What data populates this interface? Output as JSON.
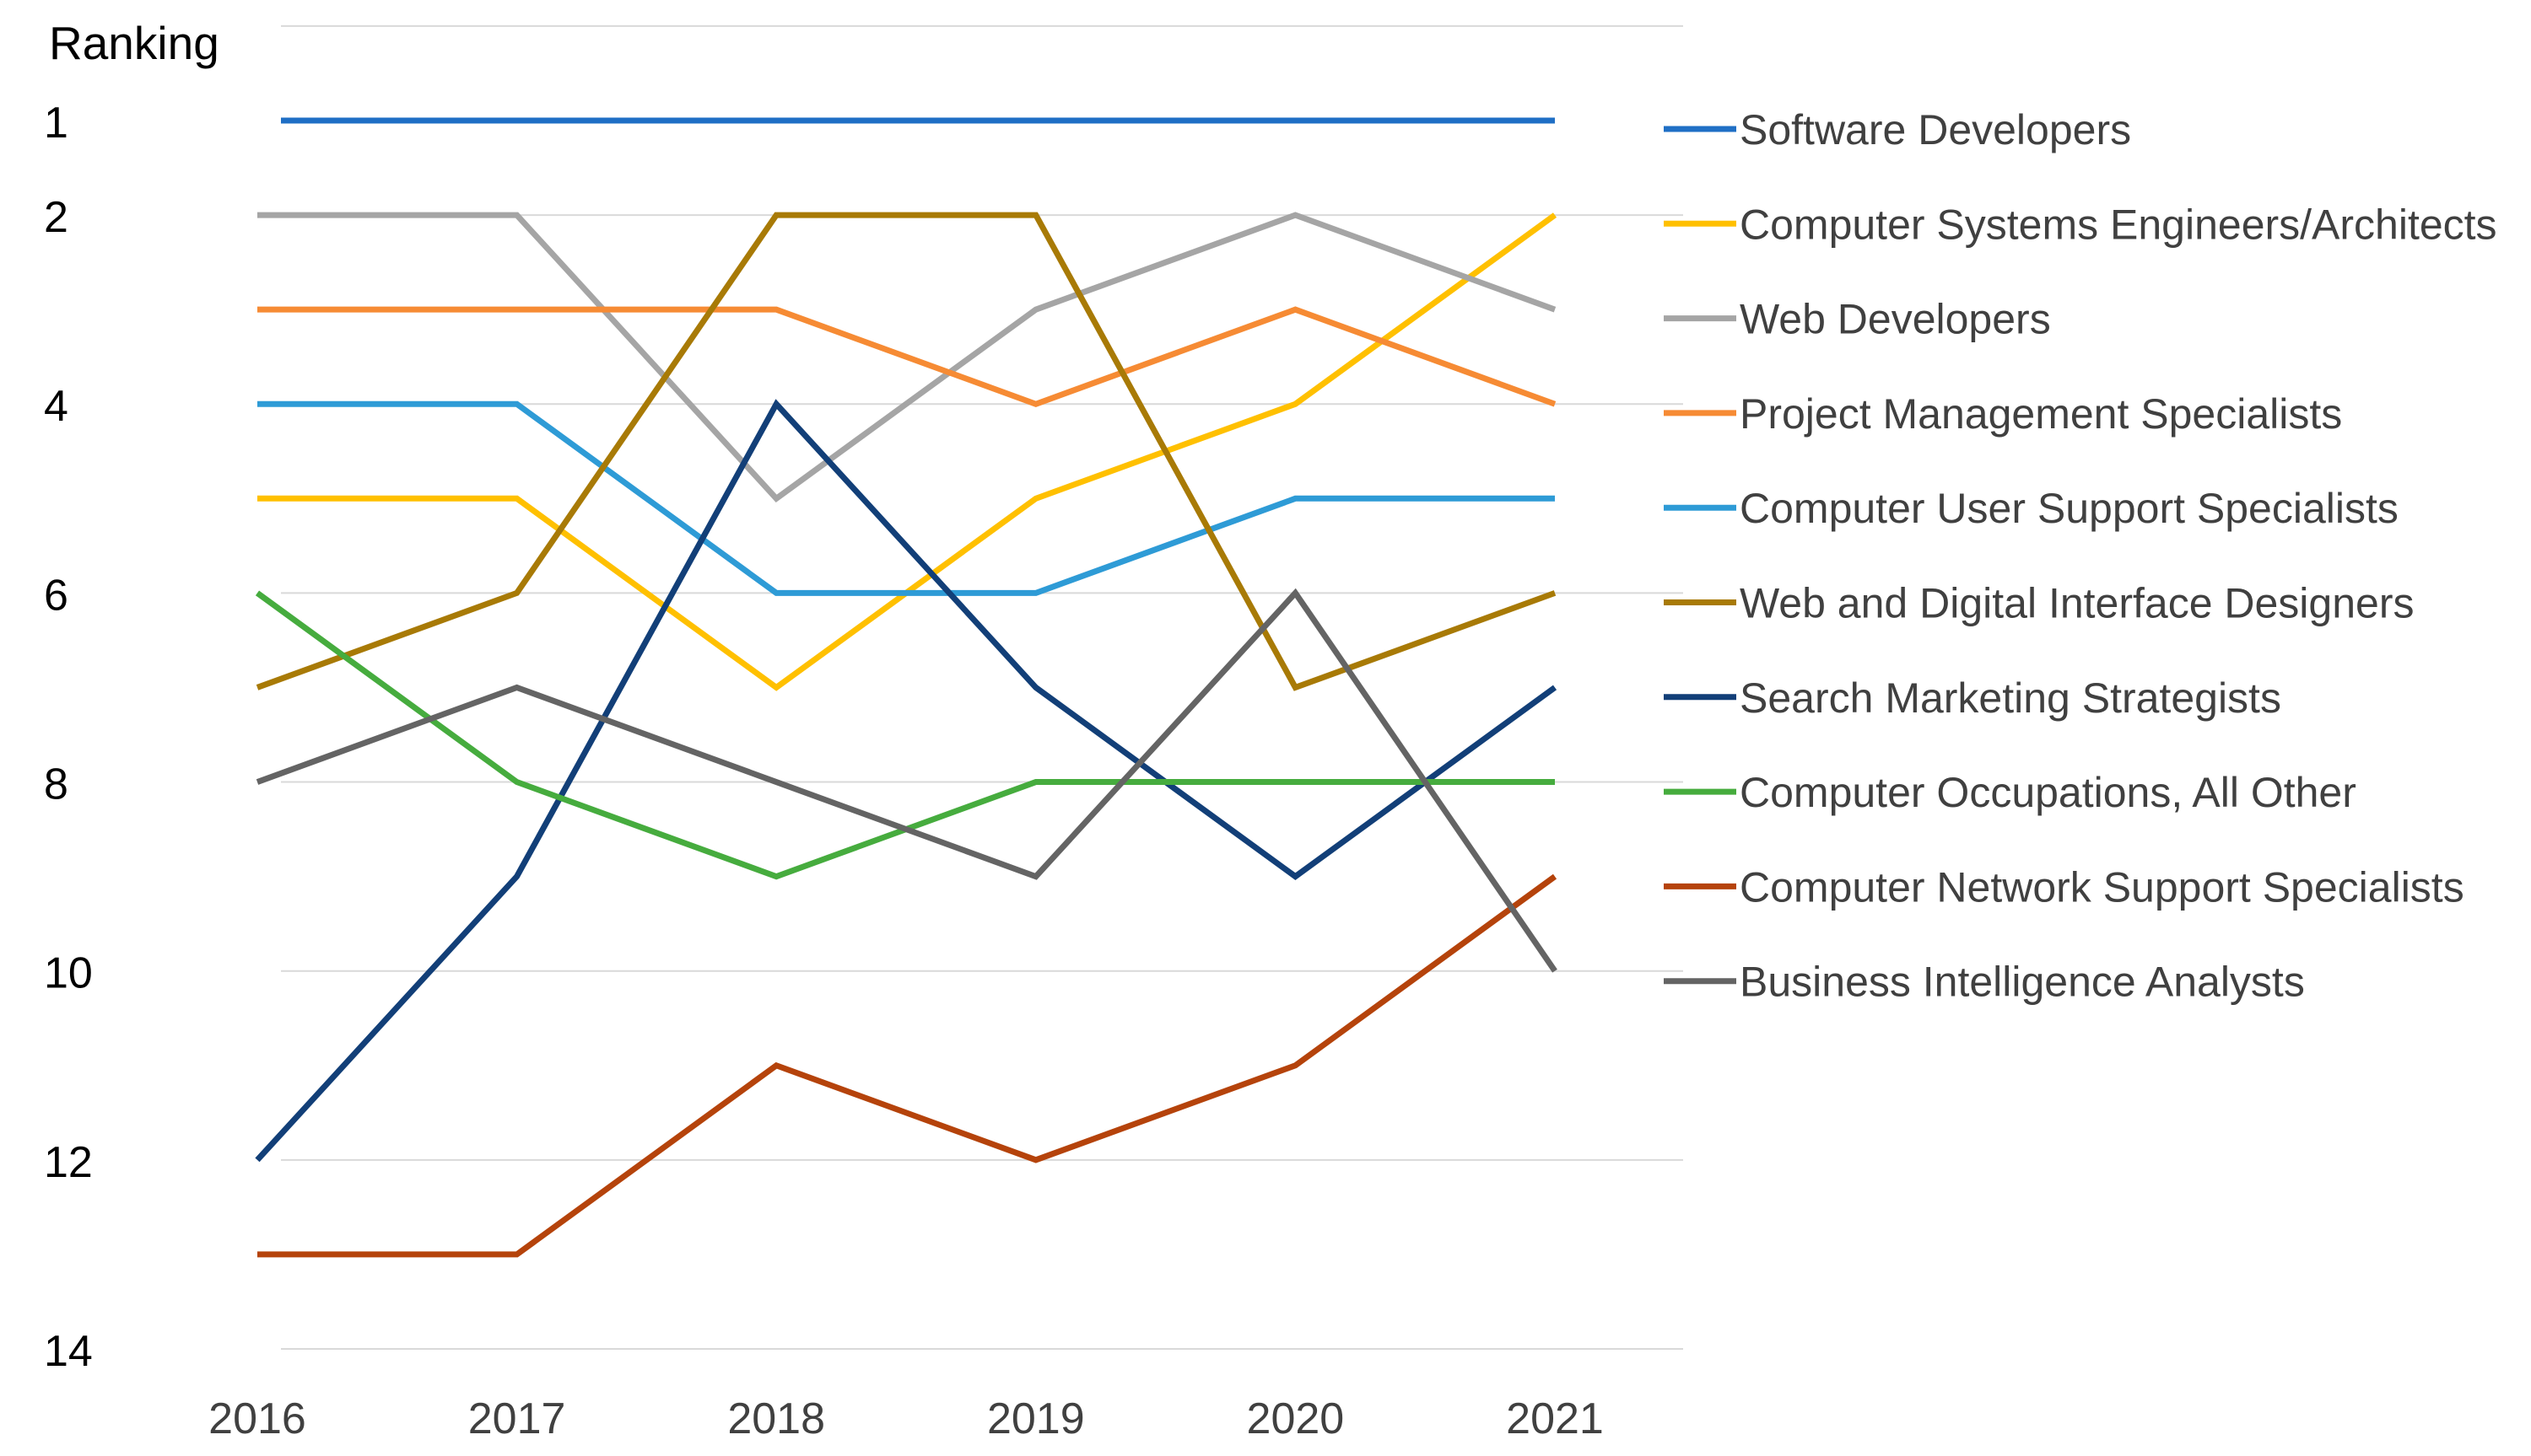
{
  "chart_data": {
    "type": "line",
    "title": "",
    "ylabel": "Ranking",
    "xlabel": "",
    "x": [
      "2016",
      "2017",
      "2018",
      "2019",
      "2020",
      "2021"
    ],
    "yticks": [
      "1",
      "2",
      "4",
      "6",
      "8",
      "10",
      "12",
      "14"
    ],
    "ylim": [
      0,
      14
    ],
    "y_inverted": true,
    "grid": true,
    "legend_position": "right",
    "series": [
      {
        "name": "Software Developers",
        "color": "#1F6FC5",
        "values": [
          1,
          1,
          1,
          1,
          1,
          1
        ]
      },
      {
        "name": "Computer Systems Engineers/Architects",
        "color": "#FFC000",
        "values": [
          5,
          5,
          7,
          5,
          4,
          2
        ]
      },
      {
        "name": "Web Developers",
        "color": "#A5A5A5",
        "values": [
          2,
          2,
          5,
          3,
          2,
          3
        ]
      },
      {
        "name": "Project Management Specialists",
        "color": "#F68B34",
        "values": [
          3,
          3,
          3,
          4,
          3,
          4
        ]
      },
      {
        "name": "Computer User Support Specialists",
        "color": "#2E9BD6",
        "values": [
          4,
          4,
          6,
          6,
          5,
          5
        ]
      },
      {
        "name": "Web and Digital Interface Designers",
        "color": "#A87A06",
        "values": [
          7,
          6,
          2,
          2,
          7,
          6
        ]
      },
      {
        "name": "Search Marketing Strategists",
        "color": "#123F78",
        "values": [
          12,
          9,
          4,
          7,
          9,
          7
        ]
      },
      {
        "name": "Computer Occupations, All Other",
        "color": "#46AC3E",
        "values": [
          6,
          8,
          9,
          8,
          8,
          8
        ]
      },
      {
        "name": "Computer Network Support Specialists",
        "color": "#B5430B",
        "values": [
          13,
          13,
          11,
          12,
          11,
          9
        ]
      },
      {
        "name": "Business Intelligence Analysts",
        "color": "#646464",
        "values": [
          8,
          7,
          8,
          9,
          6,
          10
        ]
      }
    ]
  }
}
